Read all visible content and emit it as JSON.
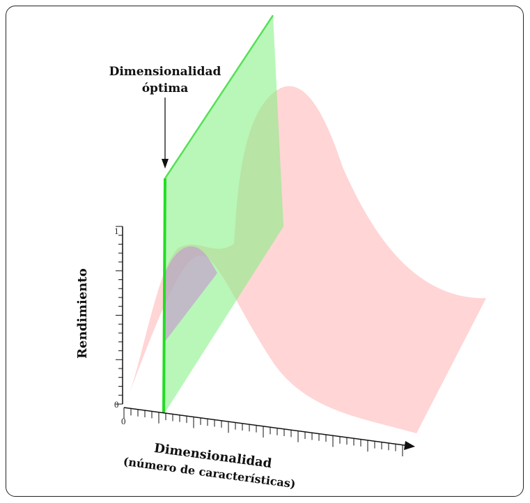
{
  "annotation": {
    "line1": "Dimensionalidad",
    "line2": "óptima"
  },
  "y_axis": {
    "label": "Rendimiento",
    "tick_max": "1",
    "tick_min": "0"
  },
  "x_axis": {
    "label_line1": "Dimensionalidad",
    "label_line2": "(número de características)",
    "tick_origin": "0"
  },
  "colors": {
    "surface": "#ffb3b3",
    "plane": "#7df07d",
    "optimal_line": "#22dd22",
    "axis": "#111111"
  }
}
